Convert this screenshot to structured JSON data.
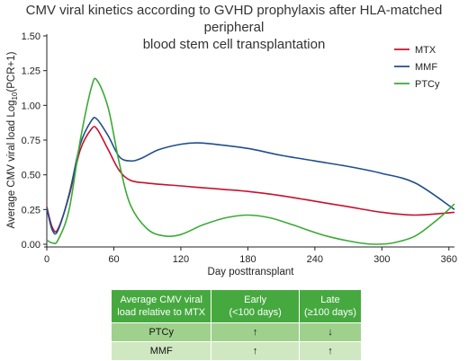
{
  "title_line1": "CMV viral kinetics according to GVHD prophylaxis after HLA-matched peripheral",
  "title_line2": "blood stem cell transplantation",
  "chart_data": {
    "type": "line",
    "title": "CMV viral kinetics according to GVHD prophylaxis after HLA-matched peripheral blood stem cell transplantation",
    "xlabel": "Day posttransplant",
    "ylabel_main": "Average CMV viral load Log",
    "ylabel_sub": "10",
    "ylabel_tail": "(PCR+1)",
    "xlim": [
      0,
      365
    ],
    "ylim": [
      0,
      1.5
    ],
    "xticks": [
      0,
      60,
      120,
      180,
      240,
      300,
      360
    ],
    "yticks": [
      0.0,
      0.25,
      0.5,
      0.75,
      1.0,
      1.25,
      1.5
    ],
    "xtick_labels": [
      "0",
      "60",
      "120",
      "180",
      "240",
      "300",
      "360"
    ],
    "ytick_labels": [
      "0.00",
      "0.25",
      "0.50",
      "0.75",
      "1.00",
      "1.25",
      "1.50"
    ],
    "grid": false,
    "legend_position": "top-right",
    "series": [
      {
        "name": "MTX",
        "color": "#c8102e",
        "x": [
          0,
          5,
          10,
          20,
          30,
          40,
          45,
          55,
          65,
          75,
          90,
          120,
          150,
          180,
          210,
          240,
          270,
          300,
          330,
          365
        ],
        "y": [
          0.27,
          0.12,
          0.11,
          0.35,
          0.68,
          0.83,
          0.83,
          0.68,
          0.53,
          0.46,
          0.44,
          0.42,
          0.4,
          0.38,
          0.35,
          0.31,
          0.27,
          0.23,
          0.21,
          0.23
        ]
      },
      {
        "name": "MMF",
        "color": "#1f4e8c",
        "x": [
          0,
          5,
          10,
          20,
          30,
          40,
          45,
          55,
          65,
          75,
          85,
          100,
          120,
          135,
          150,
          180,
          210,
          240,
          270,
          300,
          330,
          365
        ],
        "y": [
          0.26,
          0.1,
          0.1,
          0.36,
          0.72,
          0.89,
          0.9,
          0.78,
          0.63,
          0.6,
          0.62,
          0.68,
          0.72,
          0.73,
          0.72,
          0.69,
          0.64,
          0.6,
          0.56,
          0.51,
          0.44,
          0.25
        ]
      },
      {
        "name": "PTCy",
        "color": "#3aaa35",
        "x": [
          0,
          5,
          10,
          20,
          30,
          40,
          45,
          55,
          65,
          75,
          90,
          105,
          120,
          140,
          160,
          180,
          200,
          220,
          250,
          280,
          295,
          310,
          330,
          350,
          365
        ],
        "y": [
          0.03,
          0.01,
          0.03,
          0.25,
          0.75,
          1.13,
          1.18,
          0.98,
          0.58,
          0.28,
          0.11,
          0.06,
          0.07,
          0.14,
          0.19,
          0.21,
          0.19,
          0.14,
          0.06,
          0.01,
          0.0,
          0.01,
          0.06,
          0.18,
          0.29
        ]
      }
    ]
  },
  "table": {
    "headers": [
      "Average CMV viral\nload relative to MTX",
      "Early\n(<100 days)",
      "Late\n(≥100 days)"
    ],
    "rows": [
      {
        "label": "PTCy",
        "early": "↑",
        "late": "↓"
      },
      {
        "label": "MMF",
        "early": "↑",
        "late": "↑"
      }
    ]
  }
}
